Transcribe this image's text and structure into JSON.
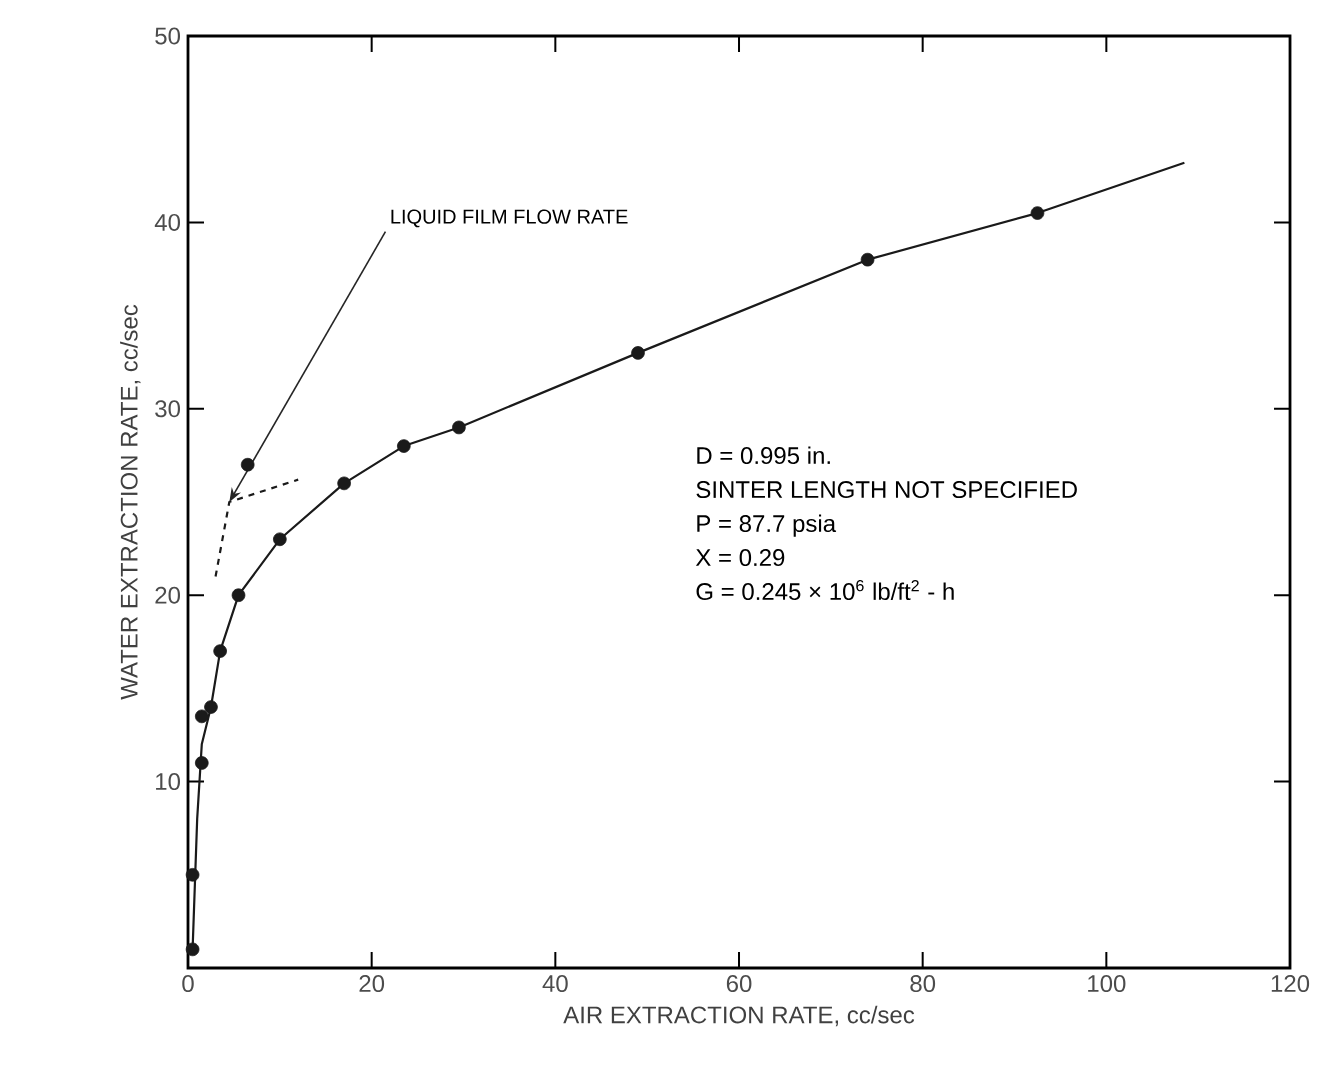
{
  "chart_data": {
    "type": "scatter",
    "xlabel": "AIR EXTRACTION RATE, cc/sec",
    "ylabel": "WATER EXTRACTION RATE, cc/sec",
    "xlim": [
      0,
      120
    ],
    "ylim": [
      0,
      50
    ],
    "xticks": [
      0,
      20,
      40,
      60,
      80,
      100,
      120
    ],
    "yticks": [
      10,
      20,
      30,
      40,
      50
    ],
    "grid": false,
    "series": [
      {
        "color": "#1a1a1a",
        "marker": "circle",
        "x": [
          0.5,
          0.5,
          1.5,
          1.5,
          2.5,
          3.5,
          5.5,
          10,
          17,
          23.5,
          29.5,
          49,
          74,
          92.5,
          6.5
        ],
        "values": [
          1,
          5,
          11,
          13.5,
          14,
          17,
          20,
          23,
          26,
          28,
          29,
          33,
          38,
          40.5,
          27
        ]
      },
      {
        "type": "line",
        "color": "#1a1a1a",
        "marker": "none",
        "line_style": "solid",
        "x": [
          0.5,
          1,
          1.5,
          2.5,
          3.5,
          5.5,
          10,
          17,
          23.5,
          29.5,
          49,
          74,
          92.5,
          108.5
        ],
        "values": [
          1,
          8,
          12,
          14,
          17,
          20,
          23,
          26,
          28,
          29,
          33,
          38,
          40.5,
          43.2
        ]
      },
      {
        "type": "line",
        "color": "#1a1a1a",
        "marker": "none",
        "line_style": "dashed",
        "x": [
          3,
          4.5,
          12
        ],
        "values": [
          21,
          25,
          26.2
        ]
      }
    ],
    "annotations": [
      {
        "text": "LIQUID FILM FLOW RATE",
        "x": 4.5,
        "y": 25
      },
      "D = 0.995 in.",
      "SINTER LENGTH NOT SPECIFIED",
      "P = 87.7 psia",
      "X = 0.29",
      "G = 0.245 × 10$^{6}$ lb/ft$^{2}$ - h"
    ]
  }
}
